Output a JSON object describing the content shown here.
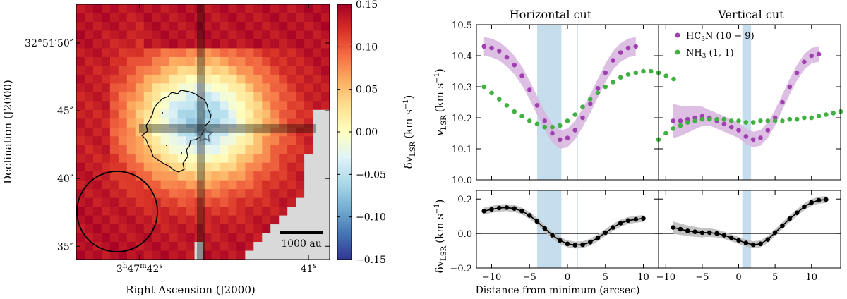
{
  "chart_data": [
    {
      "type": "heatmap",
      "panel": "velocity-map",
      "xlabel": "Right Ascension (J2000)",
      "ylabel": "Declination (J2000)",
      "x_ticks": [
        {
          "main": "3",
          "parts": [
            [
              "h",
              "47"
            ],
            [
              "m",
              "42"
            ],
            [
              "s",
              ""
            ]
          ],
          "at": 7.5
        },
        {
          "main": "41",
          "parts": [
            [
              "s",
              ""
            ]
          ],
          "at": 27.5
        }
      ],
      "y_ticks": [
        {
          "label": "32°51′50″",
          "at": 4.4
        },
        {
          "label": "45″",
          "at": 12.1
        },
        {
          "label": "40″",
          "at": 19.8
        },
        {
          "label": "35″",
          "at": 27.5
        }
      ],
      "colorbar": {
        "label": "δv",
        "label_sub": "LSR",
        "label_unit": "(km s",
        "range": [
          -0.15,
          0.15
        ],
        "ticks": [
          "0.15",
          "0.10",
          "0.05",
          "0.00",
          "−0.05",
          "−0.10",
          "−0.15"
        ],
        "tick_values": [
          0.15,
          0.1,
          0.05,
          0.0,
          -0.05,
          -0.1,
          -0.15
        ]
      },
      "map": {
        "columns": 30,
        "rows": 29,
        "peak_value": 0.14,
        "min_value": -0.07,
        "minimum_cell": [
          14.2,
          12.7
        ],
        "horizontal_cut_row": 12.1,
        "vertical_cut_col": 14.0
      },
      "annotations": {
        "scalebar_label": "1000 au",
        "source_marker": "star"
      }
    },
    {
      "type": "scatter",
      "panel": "horizontal-cut-velocity",
      "title": "Horizontal cut",
      "ylabel": "v",
      "ylabel_sub": "LSR",
      "ylabel_unit": "(km s",
      "ylim": [
        10.0,
        10.5
      ],
      "xlim": [
        -12,
        12
      ],
      "y_ticks": [
        "10.0",
        "10.1",
        "10.2",
        "10.3",
        "10.4",
        "10.5"
      ],
      "y_tick_values": [
        10.0,
        10.1,
        10.2,
        10.3,
        10.4,
        10.5
      ],
      "shaded_band": [
        -4.0,
        -0.8
      ],
      "reference_line": 1.3,
      "series": [
        {
          "name": "HC3N (10−9)",
          "color": "#a040b0",
          "x_start": -11,
          "step": 1,
          "values": [
            10.43,
            10.425,
            10.415,
            10.395,
            10.37,
            10.335,
            10.29,
            10.24,
            10.19,
            10.15,
            10.13,
            10.135,
            10.16,
            10.2,
            10.245,
            10.295,
            10.345,
            10.385,
            10.41,
            10.425,
            10.43
          ]
        },
        {
          "name": "NH3 (1,1)",
          "color": "#40b040",
          "x_start": -11,
          "step": 1,
          "values": [
            10.3,
            10.28,
            10.26,
            10.24,
            10.22,
            10.205,
            10.19,
            10.18,
            10.17,
            10.17,
            10.175,
            10.19,
            10.21,
            10.235,
            10.26,
            10.28,
            10.3,
            10.315,
            10.33,
            10.34,
            10.345,
            10.35,
            10.35,
            10.345,
            10.335,
            10.325
          ]
        }
      ]
    },
    {
      "type": "scatter",
      "panel": "vertical-cut-velocity",
      "title": "Vertical cut",
      "ylim": [
        10.0,
        10.5
      ],
      "xlim": [
        -11,
        14
      ],
      "shaded_band": [
        0.5,
        1.7
      ],
      "legend": [
        {
          "name": "HC",
          "sub": "3",
          "rest": "N (10 − 9)",
          "color": "#a040b0"
        },
        {
          "name": "NH",
          "sub": "3",
          "rest": " (1, 1)",
          "color": "#40b040"
        }
      ],
      "series": [
        {
          "name": "HC3N (10−9)",
          "color": "#a040b0",
          "x_start": -9,
          "step": 1,
          "values": [
            10.19,
            10.19,
            10.195,
            10.2,
            10.205,
            10.2,
            10.19,
            10.18,
            10.17,
            10.16,
            10.14,
            10.13,
            10.135,
            10.16,
            10.2,
            10.25,
            10.3,
            10.345,
            10.38,
            10.4,
            10.405
          ]
        },
        {
          "name": "NH3 (1,1)",
          "color": "#40b040",
          "x_start": -11,
          "step": 1,
          "values": [
            10.13,
            10.15,
            10.165,
            10.175,
            10.185,
            10.19,
            10.195,
            10.195,
            10.195,
            10.195,
            10.19,
            10.19,
            10.185,
            10.185,
            10.19,
            10.19,
            10.19,
            10.19,
            10.195,
            10.195,
            10.2,
            10.2,
            10.205,
            10.21,
            10.215,
            10.22
          ]
        }
      ]
    },
    {
      "type": "scatter",
      "panel": "horizontal-cut-residual",
      "ylabel": "δv",
      "ylabel_sub": "LSR",
      "ylabel_unit": "(km s",
      "xlabel": "Distance from minimum (arcsec)",
      "ylim": [
        -0.2,
        0.25
      ],
      "xlim": [
        -12,
        12
      ],
      "x_ticks": [
        "−10",
        "−5",
        "0",
        "5",
        "10"
      ],
      "x_tick_values": [
        -10,
        -5,
        0,
        5,
        10
      ],
      "y_ticks": [
        "−0.2",
        "0.0",
        "0.2"
      ],
      "y_tick_values": [
        -0.2,
        0.0,
        0.2
      ],
      "shaded_band": [
        -4.0,
        -0.8
      ],
      "reference_line": 1.3,
      "series": [
        {
          "name": "δv",
          "color": "#000000",
          "x_start": -11,
          "step": 1,
          "values": [
            0.13,
            0.14,
            0.148,
            0.15,
            0.145,
            0.13,
            0.105,
            0.07,
            0.03,
            -0.01,
            -0.04,
            -0.06,
            -0.067,
            -0.065,
            -0.05,
            -0.025,
            0.005,
            0.035,
            0.06,
            0.075,
            0.082,
            0.087
          ]
        }
      ]
    },
    {
      "type": "scatter",
      "panel": "vertical-cut-residual",
      "ylim": [
        -0.2,
        0.25
      ],
      "xlim": [
        -11,
        14
      ],
      "x_ticks": [
        "−10",
        "−5",
        "0",
        "5",
        "10"
      ],
      "x_tick_values": [
        -10,
        -5,
        0,
        5,
        10
      ],
      "shaded_band": [
        0.5,
        1.7
      ],
      "series": [
        {
          "name": "δv",
          "color": "#000000",
          "x_start": -9,
          "step": 1,
          "values": [
            0.035,
            0.025,
            0.015,
            0.01,
            0.005,
            0.005,
            0.0,
            -0.01,
            -0.025,
            -0.04,
            -0.055,
            -0.065,
            -0.06,
            -0.035,
            0.005,
            0.045,
            0.085,
            0.12,
            0.155,
            0.18,
            0.193,
            0.197
          ]
        }
      ]
    }
  ]
}
